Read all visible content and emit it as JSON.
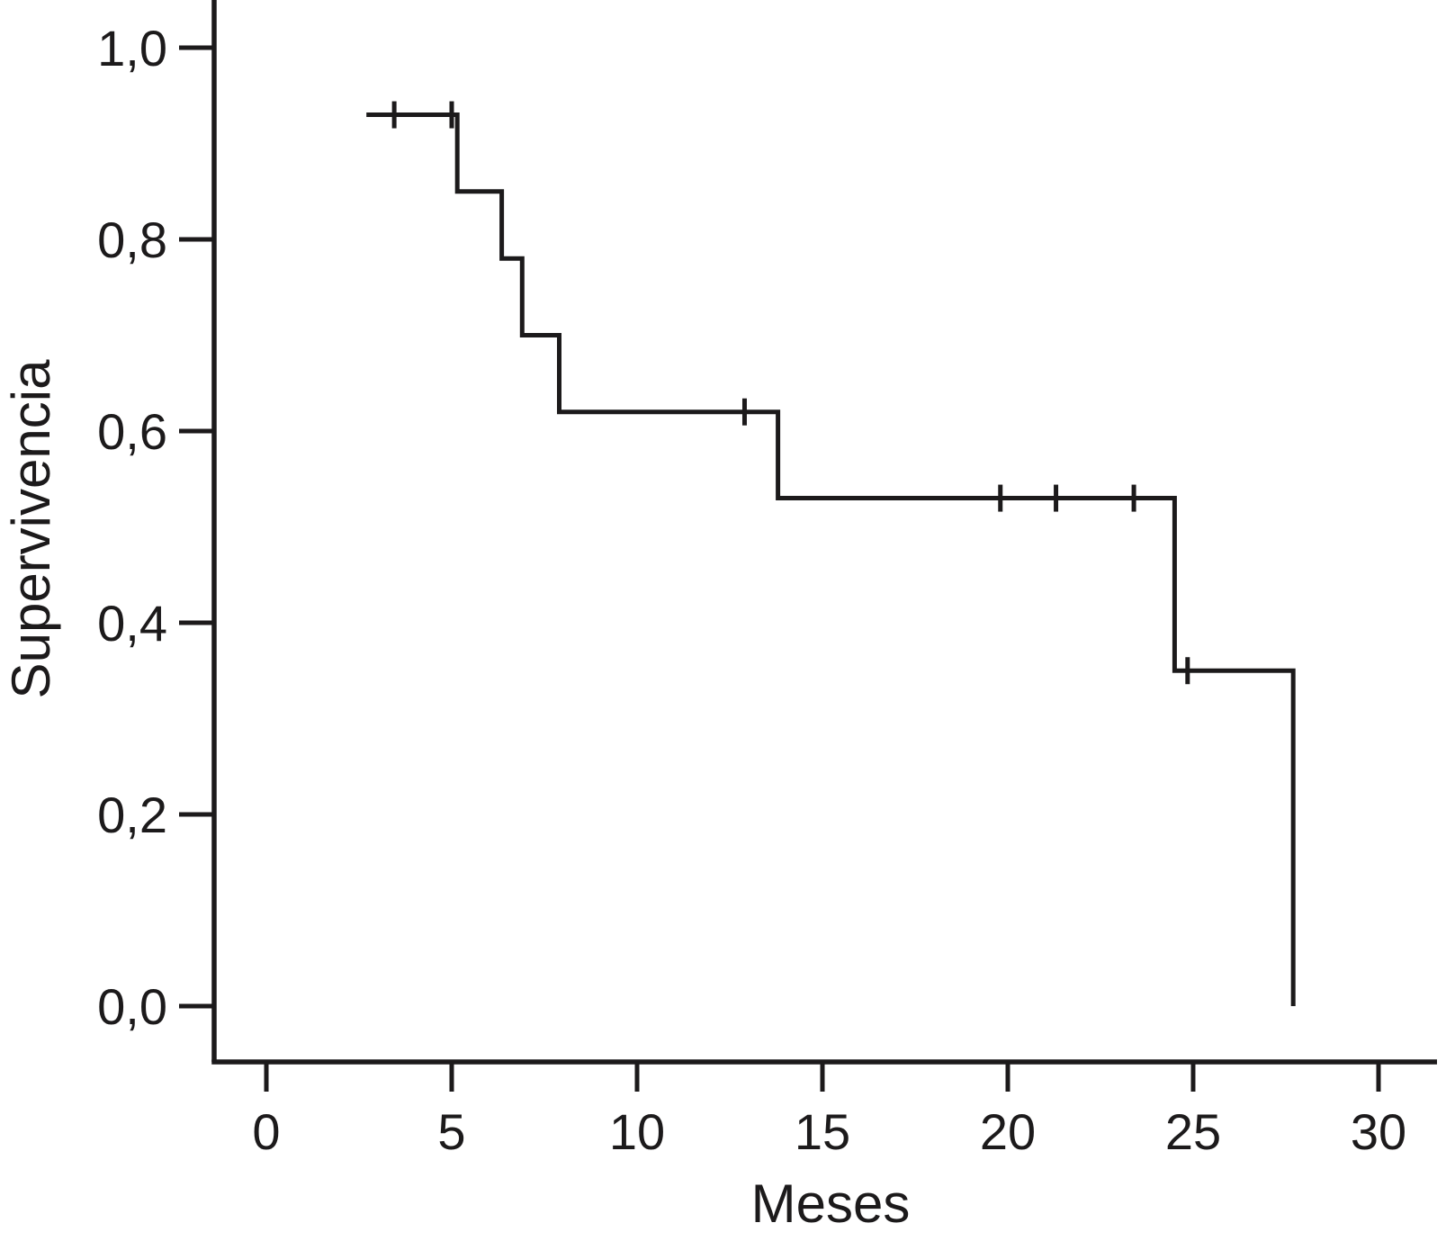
{
  "figure": {
    "background": "#ffffff",
    "line_color": "#1c1a1b",
    "text_color": "#1c1a1b"
  },
  "chart_data": {
    "type": "line",
    "subtype": "kaplan_meier_step_curve",
    "title": "",
    "xlabel": "Meses",
    "ylabel": "Supervivencia",
    "x_ticks": [
      {
        "v": 0,
        "label": "0"
      },
      {
        "v": 5,
        "label": "5"
      },
      {
        "v": 10,
        "label": "10"
      },
      {
        "v": 15,
        "label": "15"
      },
      {
        "v": 20,
        "label": "20"
      },
      {
        "v": 25,
        "label": "25"
      },
      {
        "v": 30,
        "label": "30"
      }
    ],
    "y_ticks": [
      {
        "v": 0.0,
        "label": "0,0"
      },
      {
        "v": 0.2,
        "label": "0,2"
      },
      {
        "v": 0.4,
        "label": "0,4"
      },
      {
        "v": 0.6,
        "label": "0,6"
      },
      {
        "v": 0.8,
        "label": "0,8"
      },
      {
        "v": 1.0,
        "label": "1,0"
      }
    ],
    "xlim": [
      -1.4,
      31.8
    ],
    "ylim": [
      0,
      1.05
    ],
    "grid": false,
    "legend": false,
    "decimal_separator": ",",
    "series": [
      {
        "name": "Supervivencia",
        "step_points": [
          [
            2.7,
            0.93
          ],
          [
            5.15,
            0.93
          ],
          [
            5.15,
            0.85
          ],
          [
            6.35,
            0.85
          ],
          [
            6.35,
            0.78
          ],
          [
            6.9,
            0.78
          ],
          [
            6.9,
            0.7
          ],
          [
            7.9,
            0.7
          ],
          [
            7.9,
            0.62
          ],
          [
            13.8,
            0.62
          ],
          [
            13.8,
            0.53
          ],
          [
            24.5,
            0.53
          ],
          [
            24.5,
            0.35
          ],
          [
            27.7,
            0.35
          ],
          [
            27.7,
            0.0
          ]
        ],
        "censored": [
          [
            3.45,
            0.93
          ],
          [
            5.0,
            0.93
          ],
          [
            12.9,
            0.62
          ],
          [
            19.8,
            0.53
          ],
          [
            21.3,
            0.53
          ],
          [
            23.4,
            0.53
          ],
          [
            24.85,
            0.35
          ]
        ]
      }
    ]
  }
}
